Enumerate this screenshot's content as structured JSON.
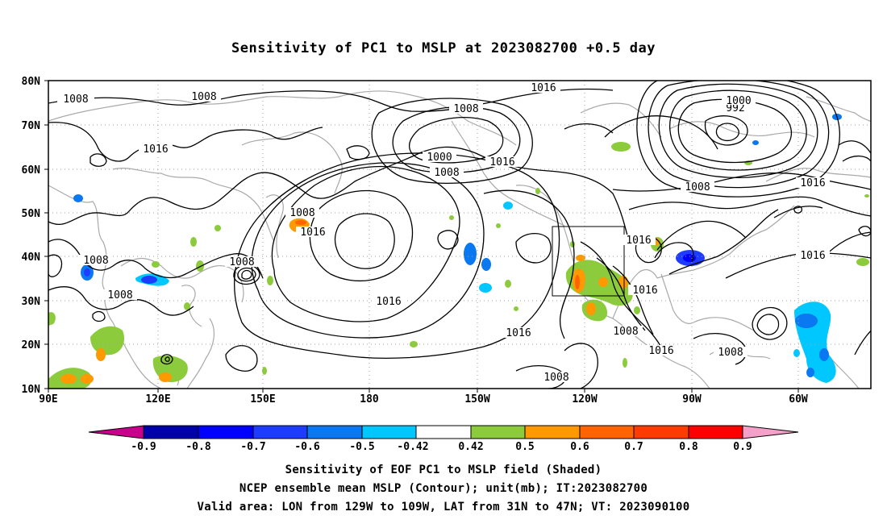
{
  "title": "Sensitivity of PC1 to MSLP at 2023082700 +0.5 day",
  "lat_labels": [
    "80N",
    "70N",
    "60N",
    "50N",
    "40N",
    "30N",
    "20N",
    "10N"
  ],
  "lon_labels": [
    "90E",
    "120E",
    "150E",
    "180",
    "150W",
    "120W",
    "90W",
    "60W"
  ],
  "contour_labels": [
    "1016",
    "1008",
    "1008",
    "1008",
    "992",
    "1000",
    "1016",
    "1016",
    "1000",
    "1008",
    "1016",
    "1008",
    "1008",
    "1016",
    "1016",
    "1008",
    "1008",
    "1008",
    "1016",
    "1016",
    "1016",
    "1016",
    "1008",
    "1016",
    "1008",
    "1008"
  ],
  "colorbar": {
    "ticks": [
      "-0.9",
      "-0.8",
      "-0.7",
      "-0.6",
      "-0.5",
      "-0.42",
      "0.42",
      "0.5",
      "0.6",
      "0.7",
      "0.8",
      "0.9"
    ],
    "colors": [
      "#c8008c",
      "#0000aa",
      "#0000ff",
      "#1e3cff",
      "#0a78f0",
      "#00c8ff",
      "#ffffff",
      "#8ccb3c",
      "#ff9900",
      "#ff6400",
      "#ff3c00",
      "#ff0000",
      "#f5a0c8"
    ]
  },
  "shading_colors": {
    "green": "#8ccb3c",
    "orange": "#ff9900",
    "dark_orange": "#ff6400",
    "light_blue": "#00c8ff",
    "blue": "#1e3cff",
    "mid_blue": "#0a78f0"
  },
  "captions": {
    "line1": "Sensitivity of EOF PC1 to MSLP field (Shaded)",
    "line2": "NCEP ensemble mean MSLP (Contour); unit(mb); IT:2023082700",
    "line3": "Valid area: LON from 129W to 109W, LAT from 31N to 47N; VT: 2023090100"
  }
}
